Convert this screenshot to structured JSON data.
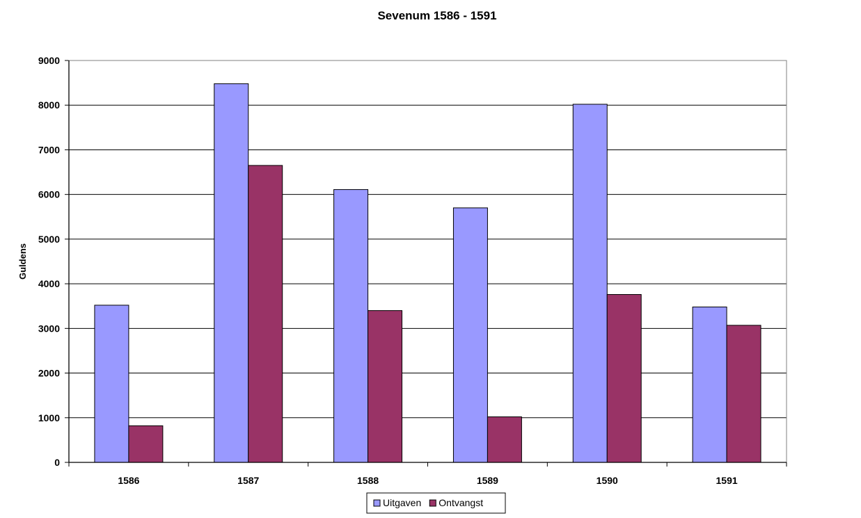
{
  "chart_data": {
    "type": "bar",
    "title": "Sevenum 1586 - 1591",
    "xlabel": "",
    "ylabel": "Guldens",
    "ylim": [
      0,
      9000
    ],
    "yticks": [
      0,
      1000,
      2000,
      3000,
      4000,
      5000,
      6000,
      7000,
      8000,
      9000
    ],
    "categories": [
      "1586",
      "1587",
      "1588",
      "1589",
      "1590",
      "1591"
    ],
    "series": [
      {
        "name": "Uitgaven",
        "color": "#9999ff",
        "values": [
          3520,
          8480,
          6110,
          5700,
          8020,
          3480
        ]
      },
      {
        "name": "Ontvangst",
        "color": "#993366",
        "values": [
          820,
          6650,
          3400,
          1020,
          3760,
          3070
        ]
      }
    ],
    "grid": true,
    "legend": "bottom-center"
  }
}
